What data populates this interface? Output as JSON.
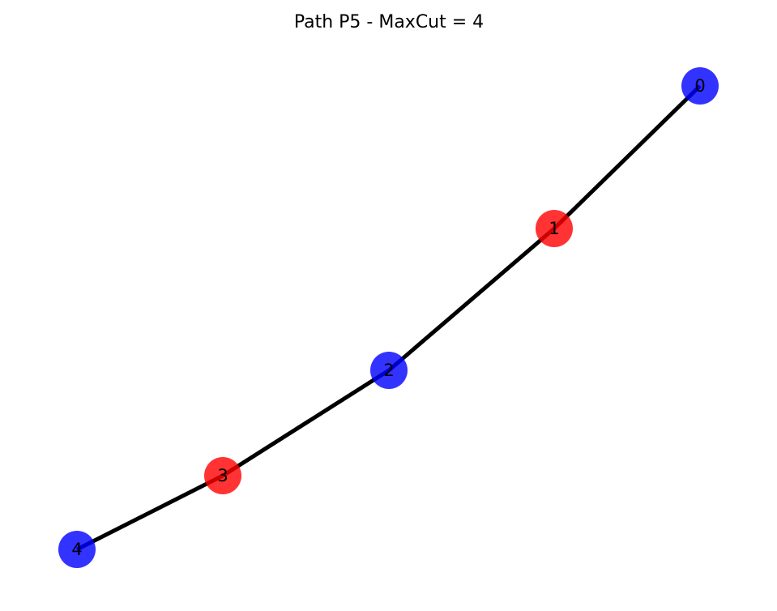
{
  "title": "Path P5 - MaxCut = 4",
  "colors": {
    "partition_a": "#0000ff",
    "partition_b": "#ff0000",
    "edge": "#000000",
    "background": "#ffffff"
  },
  "graph": {
    "nodes": [
      {
        "id": "0",
        "label": "0",
        "partition": "partition_a"
      },
      {
        "id": "1",
        "label": "1",
        "partition": "partition_b"
      },
      {
        "id": "2",
        "label": "2",
        "partition": "partition_a"
      },
      {
        "id": "3",
        "label": "3",
        "partition": "partition_b"
      },
      {
        "id": "4",
        "label": "4",
        "partition": "partition_a"
      }
    ],
    "edges": [
      {
        "source": "0",
        "target": "1"
      },
      {
        "source": "1",
        "target": "2"
      },
      {
        "source": "2",
        "target": "3"
      },
      {
        "source": "3",
        "target": "4"
      }
    ]
  }
}
